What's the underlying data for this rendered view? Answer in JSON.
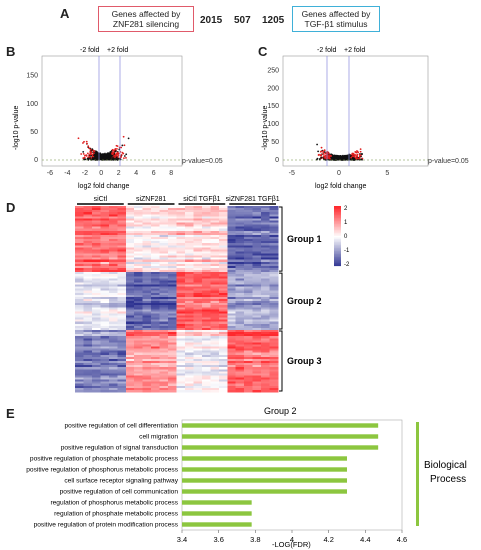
{
  "panelA": {
    "letter": "A",
    "box_left": [
      "Genes affected by",
      "ZNF281 silencing"
    ],
    "box_right": [
      "Genes affected by",
      "TGF-β1 stimulus"
    ],
    "counts": [
      "2015",
      "507",
      "1205"
    ]
  },
  "panelB": {
    "letter": "B",
    "fold_minus": "-2 fold",
    "fold_plus": "+2 fold",
    "pvalue_label": "p-value=0.05",
    "ylabel": "-log10 p-value",
    "xlabel": "log2 fold change",
    "xticks": [
      "-6",
      "-4",
      "-2",
      "0",
      "2",
      "4",
      "6",
      "8"
    ],
    "yticks": [
      "0",
      "50",
      "100",
      "150"
    ]
  },
  "panelC": {
    "letter": "C",
    "fold_minus": "-2 fold",
    "fold_plus": "+2 fold",
    "pvalue_label": "p-value=0.05",
    "ylabel": "-log10 p-value",
    "xlabel": "log2 fold change",
    "xticks": [
      "-5",
      "0",
      "5"
    ],
    "yticks": [
      "0",
      "50",
      "100",
      "150",
      "200",
      "250"
    ]
  },
  "panelD": {
    "letter": "D",
    "conditions": [
      "siCtl",
      "siZNF281",
      "siCtl TGFβ1",
      "siZNF281 TGFβ1"
    ],
    "groups": [
      "Group 1",
      "Group 2",
      "Group 3"
    ],
    "scale_ticks": [
      "2",
      "1",
      "0",
      "-1",
      "-2"
    ],
    "colors": {
      "high": "#e8232a",
      "mid": "#ffffff",
      "low": "#2a2f8f"
    }
  },
  "panelE": {
    "letter": "E",
    "title": "Group 2",
    "category": [
      "Biological",
      "Process"
    ],
    "xlabel": "-LOG(FDR)",
    "bar_color": "#8cc63f",
    "xlim": [
      3.4,
      4.6
    ],
    "xticks": [
      "3.4",
      "3.6",
      "3.8",
      "4",
      "4.2",
      "4.4",
      "4.6"
    ],
    "terms": [
      {
        "label": "positive regulation of cell differentiation",
        "value": 4.47
      },
      {
        "label": "cell migration",
        "value": 4.47
      },
      {
        "label": "positive regulation of signal transduction",
        "value": 4.47
      },
      {
        "label": "positive regulation of phosphate metabolic process",
        "value": 4.3
      },
      {
        "label": "positive regulation of phosphorus metabolic process",
        "value": 4.3
      },
      {
        "label": "cell surface receptor signaling pathway",
        "value": 4.3
      },
      {
        "label": "positive regulation of cell communication",
        "value": 4.3
      },
      {
        "label": "regulation of phosphorus metabolic process",
        "value": 3.78
      },
      {
        "label": "regulation of phosphate metabolic process",
        "value": 3.78
      },
      {
        "label": "positive regulation of protein modification process",
        "value": 3.78
      }
    ]
  }
}
